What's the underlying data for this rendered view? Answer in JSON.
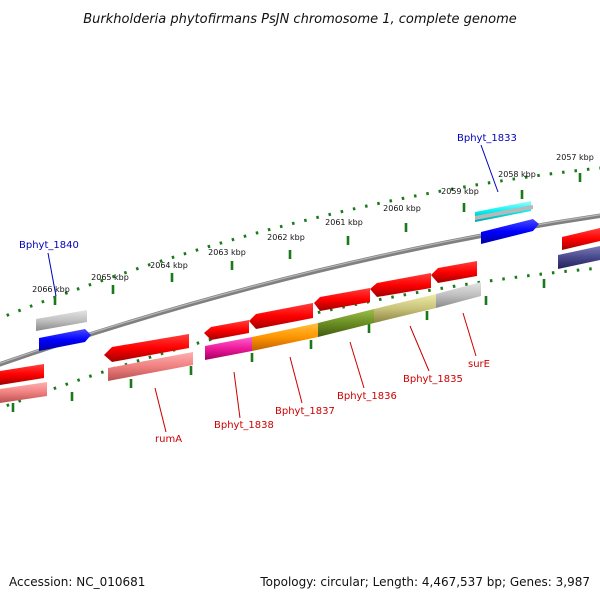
{
  "title": "Burkholderia phytofirmans PsJN chromosome 1, complete genome",
  "footer": {
    "accession": "Accession: NC_010681",
    "summary": "Topology: circular; Length: 4,467,537 bp; Genes: 3,987"
  },
  "colors": {
    "backbone": "#808080",
    "tick": "#1a7a1a",
    "red_label": "#cc0000",
    "blue_label": "#0000bb"
  },
  "kbp_ticks": [
    "2066 kbp",
    "2065 kbp",
    "2064 kbp",
    "2063 kbp",
    "2062 kbp",
    "2061 kbp",
    "2060 kbp",
    "2059 kbp",
    "2058 kbp",
    "2057 kbp"
  ],
  "gene_labels": [
    {
      "text": "Bphyt_1840",
      "color": "#0000bb"
    },
    {
      "text": "Bphyt_1833",
      "color": "#0000bb"
    },
    {
      "text": "rumA",
      "color": "#cc0000"
    },
    {
      "text": "Bphyt_1838",
      "color": "#cc0000"
    },
    {
      "text": "Bphyt_1837",
      "color": "#cc0000"
    },
    {
      "text": "Bphyt_1836",
      "color": "#cc0000"
    },
    {
      "text": "Bphyt_1835",
      "color": "#cc0000"
    },
    {
      "text": "surE",
      "color": "#cc0000"
    }
  ]
}
